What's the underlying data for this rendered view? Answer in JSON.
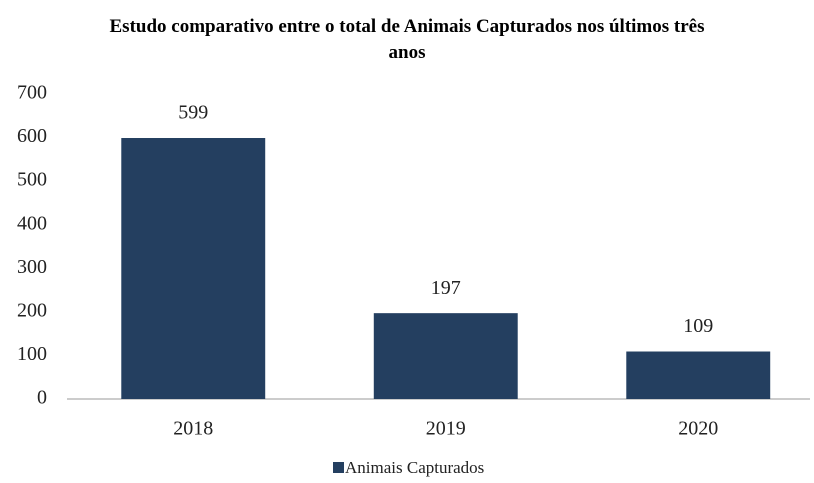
{
  "chart_data": {
    "type": "bar",
    "title": "Estudo comparativo entre o total de Animais Capturados nos últimos três anos",
    "categories": [
      "2018",
      "2019",
      "2020"
    ],
    "series": [
      {
        "name": "Animais Capturados",
        "color": "#243f60",
        "values": [
          599,
          197,
          109
        ]
      }
    ],
    "ylim": [
      0,
      700
    ],
    "yticks": [
      0,
      100,
      200,
      300,
      400,
      500,
      600,
      700
    ],
    "grid": false,
    "legend": "bottom"
  }
}
